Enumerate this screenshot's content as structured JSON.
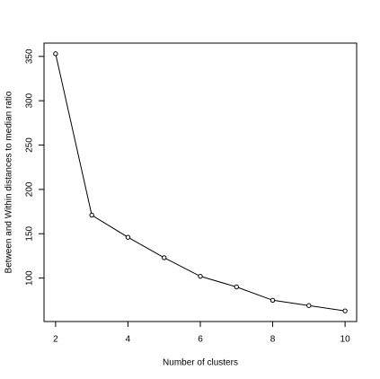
{
  "chart_data": {
    "type": "line",
    "x_label": "Number of clusters",
    "y_label": "Between and Within distances to median ratio",
    "x": [
      2,
      3,
      4,
      5,
      6,
      7,
      8,
      9,
      10
    ],
    "values": [
      353,
      171,
      146,
      123,
      102,
      90,
      75,
      69,
      63
    ],
    "color": "#000000",
    "xlim": [
      1.68,
      10.32
    ],
    "xticks": [
      2,
      4,
      6,
      8,
      10
    ],
    "ylim": [
      51,
      365
    ],
    "yticks": [
      100,
      150,
      200,
      250,
      300,
      350
    ]
  }
}
